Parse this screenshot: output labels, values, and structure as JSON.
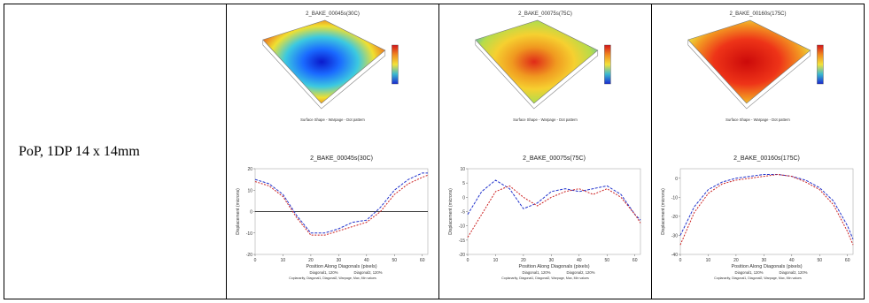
{
  "row": {
    "label": "PoP, 1DP 14 x 14mm"
  },
  "panels": [
    {
      "surface_title": "2_BAKE_00045s(30C)",
      "surface_caption": "Surface Shape - Warpage - Dot pattern",
      "line_title": "2_BAKE_00045s(30C)",
      "ylabel": "Displacement (microns)",
      "xlabel": "Position Along Diagonals (pixels)",
      "legend": [
        "Diagonal1, 120%",
        "Diagonal2, 120%"
      ],
      "footer": "Coplanarity, Diagonal1, Diagonal2, Warpage, Max, Min values",
      "colormap": "blue-center"
    },
    {
      "surface_title": "2_BAKE_00075s(75C)",
      "surface_caption": "Surface Shape - Warpage - Dot pattern",
      "line_title": "2_BAKE_00075s(75C)",
      "ylabel": "Displacement (microns)",
      "xlabel": "Position Along Diagonals (pixels)",
      "legend": [
        "Diagonal1, 120%",
        "Diagonal2, 120%"
      ],
      "footer": "Coplanarity, Diagonal1, Diagonal2, Warpage, Max, Min values",
      "colormap": "mixed"
    },
    {
      "surface_title": "2_BAKE_00160s(175C)",
      "surface_caption": "Surface Shape - Warpage - Dot pattern",
      "line_title": "2_BAKE_00160s(175C)",
      "ylabel": "Displacement (microns)",
      "xlabel": "Position Along Diagonals (pixels)",
      "legend": [
        "Diagonal1, 120%",
        "Diagonal2, 120%"
      ],
      "footer": "Coplanarity, Diagonal1, Diagonal2, Warpage, Max, Min values",
      "colormap": "red-center"
    }
  ],
  "chart_data": [
    {
      "type": "line",
      "title": "2_BAKE_00045s(30C)",
      "xlabel": "Position Along Diagonals (pixels)",
      "ylabel": "Displacement (microns)",
      "xlim": [
        0,
        62
      ],
      "ylim": [
        -20,
        20
      ],
      "xticks": [
        0,
        10,
        20,
        30,
        40,
        50,
        60
      ],
      "yticks": [
        -20,
        -10,
        0,
        10,
        20
      ],
      "zero_line": true,
      "x": [
        0,
        5,
        10,
        15,
        20,
        25,
        30,
        35,
        40,
        45,
        50,
        55,
        60,
        62
      ],
      "series": [
        {
          "name": "Diagonal1, 120%",
          "color": "#2233cc",
          "values": [
            15,
            13,
            8,
            -2,
            -10,
            -10,
            -8,
            -5,
            -4,
            2,
            10,
            15,
            18,
            18
          ]
        },
        {
          "name": "Diagonal2, 120%",
          "color": "#cc2222",
          "values": [
            14,
            12,
            7,
            -3,
            -11,
            -11,
            -9,
            -7,
            -5,
            0,
            8,
            13,
            16,
            17
          ]
        }
      ]
    },
    {
      "type": "line",
      "title": "2_BAKE_00075s(75C)",
      "xlabel": "Position Along Diagonals (pixels)",
      "ylabel": "Displacement (microns)",
      "xlim": [
        0,
        62
      ],
      "ylim": [
        -20,
        10
      ],
      "xticks": [
        0,
        10,
        20,
        30,
        40,
        50,
        60
      ],
      "yticks": [
        -20,
        -15,
        -10,
        -5,
        0,
        5,
        10
      ],
      "zero_line": false,
      "x": [
        0,
        5,
        10,
        15,
        20,
        25,
        30,
        35,
        40,
        45,
        50,
        55,
        60,
        62
      ],
      "series": [
        {
          "name": "Diagonal1, 120%",
          "color": "#2233cc",
          "values": [
            -6,
            2,
            6,
            3,
            -4,
            -2,
            2,
            3,
            2,
            3,
            4,
            1,
            -6,
            -8
          ]
        },
        {
          "name": "Diagonal2, 120%",
          "color": "#cc2222",
          "values": [
            -14,
            -6,
            2,
            4,
            0,
            -3,
            0,
            2,
            3,
            1,
            3,
            0,
            -6,
            -9
          ]
        }
      ]
    },
    {
      "type": "line",
      "title": "2_BAKE_00160s(175C)",
      "xlabel": "Position Along Diagonals (pixels)",
      "ylabel": "Displacement (microns)",
      "xlim": [
        0,
        62
      ],
      "ylim": [
        -40,
        5
      ],
      "xticks": [
        0,
        10,
        20,
        30,
        40,
        50,
        60
      ],
      "yticks": [
        -40,
        -30,
        -20,
        -10,
        0
      ],
      "zero_line": false,
      "x": [
        0,
        5,
        10,
        15,
        20,
        25,
        30,
        35,
        40,
        45,
        50,
        55,
        60,
        62
      ],
      "series": [
        {
          "name": "Diagonal1, 120%",
          "color": "#2233cc",
          "values": [
            -30,
            -15,
            -6,
            -2,
            0,
            1,
            2,
            2,
            1,
            -1,
            -5,
            -12,
            -25,
            -32
          ]
        },
        {
          "name": "Diagonal2, 120%",
          "color": "#cc2222",
          "values": [
            -35,
            -18,
            -8,
            -3,
            -1,
            0,
            1,
            2,
            1,
            -2,
            -6,
            -14,
            -28,
            -35
          ]
        }
      ]
    }
  ]
}
